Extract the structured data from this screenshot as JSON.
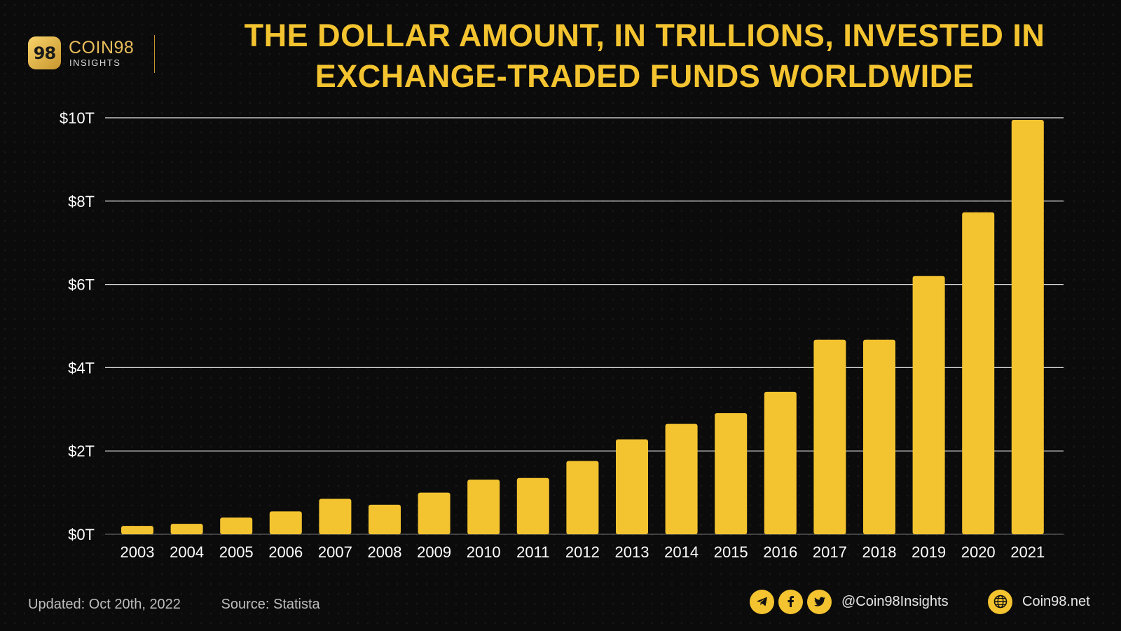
{
  "brand": {
    "mark": "98",
    "name": "COIN98",
    "sub": "INSIGHTS"
  },
  "title_line1": "THE DOLLAR AMOUNT, IN TRILLIONS, INVESTED IN",
  "title_line2": "EXCHANGE-TRADED FUNDS WORLDWIDE",
  "footer": {
    "updated": "Updated: Oct 20th, 2022",
    "source": "Source: Statista",
    "handle": "@Coin98Insights",
    "site": "Coin98.net"
  },
  "icons": [
    "telegram-icon",
    "facebook-icon",
    "twitter-icon",
    "globe-icon"
  ],
  "colors": {
    "bar": "#f4c430",
    "title": "#f4c430",
    "grid": "#ffffff",
    "background": "#0b0b0b"
  },
  "chart_data": {
    "type": "bar",
    "title": "THE DOLLAR AMOUNT, IN TRILLIONS, INVESTED IN EXCHANGE-TRADED FUNDS WORLDWIDE",
    "categories": [
      "2003",
      "2004",
      "2005",
      "2006",
      "2007",
      "2008",
      "2009",
      "2010",
      "2011",
      "2012",
      "2013",
      "2014",
      "2015",
      "2016",
      "2017",
      "2018",
      "2019",
      "2020",
      "2021"
    ],
    "values": [
      0.2,
      0.25,
      0.4,
      0.55,
      0.85,
      0.71,
      1.0,
      1.31,
      1.35,
      1.76,
      2.28,
      2.65,
      2.91,
      3.42,
      4.67,
      4.67,
      6.2,
      7.73,
      9.95
    ],
    "yticks": [
      "$0T",
      "$2T",
      "$4T",
      "$6T",
      "$8T",
      "$10T"
    ],
    "ylim": [
      0,
      10
    ],
    "xlabel": "",
    "ylabel": "",
    "grid": true
  }
}
